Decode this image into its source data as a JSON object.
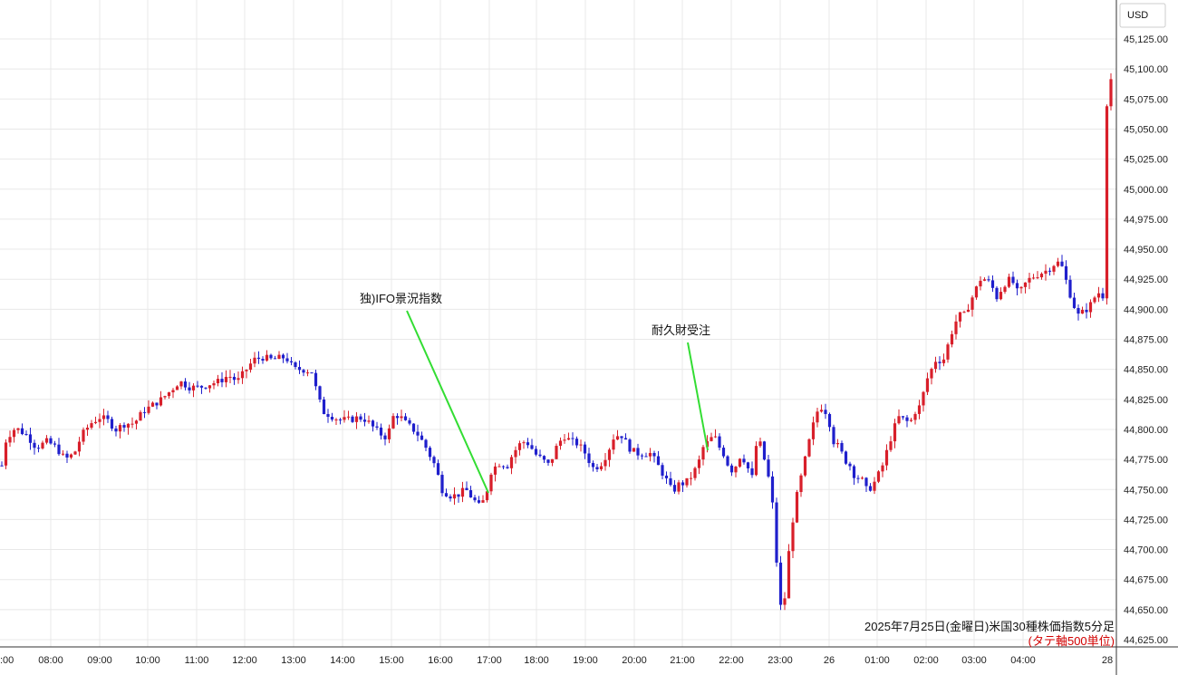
{
  "currency": "USD",
  "caption": {
    "title": "2025年7月25日(金曜日)米国30種株価指数5分足",
    "subtitle": "(タテ軸500単位)"
  },
  "colors": {
    "up": "#d81f2a",
    "down": "#1f1fcc",
    "annotation_line": "#33dd33",
    "grid": "#e8e8e8"
  },
  "chart_data": {
    "type": "candlestick",
    "title": "",
    "y_axis": {
      "side": "right",
      "ylim": [
        44625,
        45135
      ],
      "ticks": [
        44625,
        44650,
        44675,
        44700,
        44725,
        44750,
        44775,
        44800,
        44825,
        44850,
        44875,
        44900,
        44925,
        44950,
        44975,
        45000,
        45025,
        45050,
        45075,
        45100,
        45125
      ],
      "tick_labels": [
        "44,625.00",
        "44,650.00",
        "44,675.00",
        "44,700.00",
        "44,725.00",
        "44,750.00",
        "44,775.00",
        "44,800.00",
        "44,825.00",
        "44,850.00",
        "44,875.00",
        "44,900.00",
        "44,925.00",
        "44,950.00",
        "44,975.00",
        "45,000.00",
        "45,025.00",
        "45,050.00",
        "45,075.00",
        "45,100.00",
        "45,125.00"
      ]
    },
    "x_axis": {
      "hour_labels": [
        ":00",
        "08:00",
        "09:00",
        "10:00",
        "11:00",
        "12:00",
        "13:00",
        "14:00",
        "15:00",
        "16:00",
        "17:00",
        "18:00",
        "19:00",
        "20:00",
        "21:00",
        "22:00",
        "23:00",
        "26",
        "01:00",
        "02:00",
        "03:00",
        "04:00",
        "28"
      ]
    },
    "path_points": [
      [
        0,
        44760
      ],
      [
        6,
        44790
      ],
      [
        14,
        44800
      ],
      [
        20,
        44800
      ],
      [
        30,
        44795
      ],
      [
        40,
        44785
      ],
      [
        52,
        44790
      ],
      [
        62,
        44785
      ],
      [
        72,
        44775
      ],
      [
        82,
        44780
      ],
      [
        90,
        44795
      ],
      [
        100,
        44805
      ],
      [
        110,
        44810
      ],
      [
        118,
        44808
      ],
      [
        128,
        44800
      ],
      [
        138,
        44805
      ],
      [
        148,
        44805
      ],
      [
        158,
        44815
      ],
      [
        168,
        44820
      ],
      [
        178,
        44825
      ],
      [
        188,
        44832
      ],
      [
        198,
        44840
      ],
      [
        210,
        44835
      ],
      [
        220,
        44835
      ],
      [
        232,
        44838
      ],
      [
        242,
        44840
      ],
      [
        252,
        44845
      ],
      [
        262,
        44840
      ],
      [
        272,
        44850
      ],
      [
        280,
        44858
      ],
      [
        290,
        44860
      ],
      [
        300,
        44858
      ],
      [
        312,
        44860
      ],
      [
        318,
        44858
      ],
      [
        324,
        44850
      ],
      [
        334,
        44850
      ],
      [
        344,
        44848
      ],
      [
        350,
        44830
      ],
      [
        356,
        44815
      ],
      [
        364,
        44812
      ],
      [
        374,
        44808
      ],
      [
        386,
        44808
      ],
      [
        396,
        44810
      ],
      [
        404,
        44808
      ],
      [
        414,
        44800
      ],
      [
        422,
        44795
      ],
      [
        428,
        44793
      ],
      [
        432,
        44810
      ],
      [
        440,
        44812
      ],
      [
        448,
        44805
      ],
      [
        456,
        44800
      ],
      [
        462,
        44795
      ],
      [
        470,
        44785
      ],
      [
        480,
        44770
      ],
      [
        488,
        44750
      ],
      [
        496,
        44745
      ],
      [
        504,
        44745
      ],
      [
        514,
        44750
      ],
      [
        522,
        44742
      ],
      [
        530,
        44735
      ],
      [
        536,
        44745
      ],
      [
        542,
        44765
      ],
      [
        550,
        44772
      ],
      [
        560,
        44770
      ],
      [
        566,
        44780
      ],
      [
        576,
        44790
      ],
      [
        584,
        44788
      ],
      [
        590,
        44780
      ],
      [
        598,
        44775
      ],
      [
        606,
        44770
      ],
      [
        614,
        44785
      ],
      [
        622,
        44795
      ],
      [
        630,
        44790
      ],
      [
        638,
        44788
      ],
      [
        646,
        44780
      ],
      [
        654,
        44768
      ],
      [
        662,
        44770
      ],
      [
        670,
        44780
      ],
      [
        678,
        44795
      ],
      [
        686,
        44795
      ],
      [
        694,
        44785
      ],
      [
        702,
        44780
      ],
      [
        710,
        44780
      ],
      [
        718,
        44780
      ],
      [
        726,
        44770
      ],
      [
        734,
        44760
      ],
      [
        742,
        44748
      ],
      [
        750,
        44755
      ],
      [
        756,
        44755
      ],
      [
        762,
        44760
      ],
      [
        770,
        44770
      ],
      [
        776,
        44785
      ],
      [
        782,
        44790
      ],
      [
        788,
        44795
      ],
      [
        794,
        44785
      ],
      [
        800,
        44778
      ],
      [
        806,
        44765
      ],
      [
        812,
        44770
      ],
      [
        818,
        44780
      ],
      [
        824,
        44770
      ],
      [
        830,
        44760
      ],
      [
        836,
        44795
      ],
      [
        842,
        44780
      ],
      [
        848,
        44760
      ],
      [
        854,
        44730
      ],
      [
        860,
        44650
      ],
      [
        866,
        44660
      ],
      [
        872,
        44710
      ],
      [
        878,
        44740
      ],
      [
        884,
        44760
      ],
      [
        890,
        44780
      ],
      [
        896,
        44800
      ],
      [
        902,
        44815
      ],
      [
        908,
        44820
      ],
      [
        914,
        44810
      ],
      [
        920,
        44790
      ],
      [
        926,
        44785
      ],
      [
        932,
        44775
      ],
      [
        938,
        44770
      ],
      [
        944,
        44760
      ],
      [
        950,
        44760
      ],
      [
        956,
        44750
      ],
      [
        962,
        44752
      ],
      [
        968,
        44760
      ],
      [
        974,
        44770
      ],
      [
        980,
        44785
      ],
      [
        986,
        44800
      ],
      [
        992,
        44810
      ],
      [
        998,
        44808
      ],
      [
        1004,
        44805
      ],
      [
        1010,
        44815
      ],
      [
        1016,
        44820
      ],
      [
        1022,
        44840
      ],
      [
        1028,
        44850
      ],
      [
        1034,
        44860
      ],
      [
        1040,
        44855
      ],
      [
        1046,
        44870
      ],
      [
        1052,
        44885
      ],
      [
        1058,
        44895
      ],
      [
        1064,
        44895
      ],
      [
        1070,
        44905
      ],
      [
        1076,
        44915
      ],
      [
        1082,
        44925
      ],
      [
        1088,
        44925
      ],
      [
        1094,
        44920
      ],
      [
        1100,
        44910
      ],
      [
        1106,
        44918
      ],
      [
        1112,
        44925
      ],
      [
        1118,
        44922
      ],
      [
        1124,
        44912
      ],
      [
        1130,
        44920
      ],
      [
        1136,
        44925
      ],
      [
        1142,
        44928
      ],
      [
        1148,
        44930
      ],
      [
        1154,
        44932
      ],
      [
        1160,
        44935
      ],
      [
        1166,
        44940
      ],
      [
        1172,
        44935
      ],
      [
        1178,
        44920
      ],
      [
        1184,
        44905
      ],
      [
        1190,
        44895
      ],
      [
        1196,
        44898
      ],
      [
        1202,
        44902
      ],
      [
        1208,
        44910
      ],
      [
        1214,
        44915
      ],
      [
        1218,
        44910
      ],
      [
        1222,
        45095
      ],
      [
        1228,
        45090
      ]
    ],
    "annotations": [
      {
        "text": "独)IFO景況指数",
        "line_from": [
          449,
          343
        ],
        "line_to": [
          539,
          544
        ]
      },
      {
        "text": "耐久財受注",
        "line_from": [
          759,
          378
        ],
        "line_to": [
          781,
          497
        ]
      }
    ]
  }
}
